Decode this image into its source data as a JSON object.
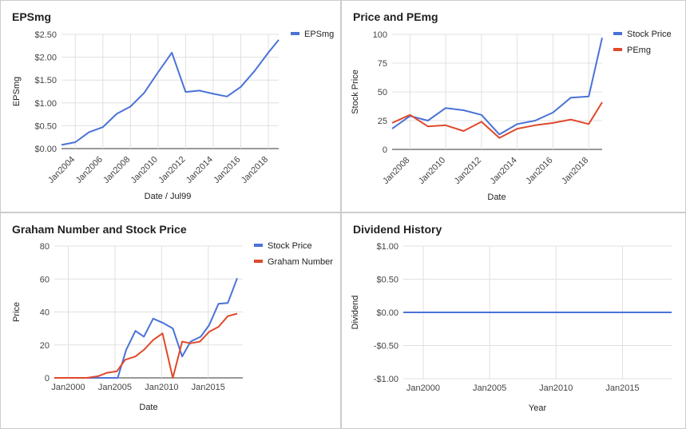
{
  "chart_data": [
    {
      "type": "line",
      "title": "EPSmg",
      "xlabel": "Date / Jul99",
      "ylabel": "EPSmg",
      "x_ticks": [
        "Jan2004",
        "Jan2006",
        "Jan2008",
        "Jan2010",
        "Jan2012",
        "Jan2014",
        "Jan2016",
        "Jan2018"
      ],
      "y_ticks": [
        "$0.00",
        "$0.50",
        "$1.00",
        "$1.50",
        "$2.00",
        "$2.50"
      ],
      "ylim": [
        0,
        2.5
      ],
      "xlim": [
        2003.0,
        2018.75
      ],
      "legend": "right",
      "grid": true,
      "series": [
        {
          "name": "EPSmg",
          "color": "#4a72d6",
          "x": [
            2003.0,
            2004.0,
            2005.0,
            2006.0,
            2007.0,
            2008.0,
            2009.0,
            2010.0,
            2011.0,
            2012.0,
            2013.0,
            2014.0,
            2015.0,
            2016.0,
            2017.0,
            2018.0,
            2018.75
          ],
          "y": [
            0.08,
            0.14,
            0.36,
            0.47,
            0.76,
            0.92,
            1.22,
            1.67,
            2.1,
            1.24,
            1.27,
            1.2,
            1.14,
            1.35,
            1.7,
            2.1,
            2.38
          ]
        }
      ]
    },
    {
      "type": "line",
      "title": "Price and PEmg",
      "xlabel": "Date",
      "ylabel": "Stock Price",
      "x_ticks": [
        "Jan2008",
        "Jan2010",
        "Jan2012",
        "Jan2014",
        "Jan2016",
        "Jan2018"
      ],
      "y_ticks": [
        "0",
        "25",
        "50",
        "75",
        "100"
      ],
      "ylim": [
        0,
        100
      ],
      "xlim": [
        2007.0,
        2018.75
      ],
      "legend": "right",
      "grid": true,
      "series": [
        {
          "name": "Stock Price",
          "color": "#4a72d6",
          "x": [
            2007.0,
            2008.0,
            2009.0,
            2010.0,
            2011.0,
            2012.0,
            2013.0,
            2014.0,
            2015.0,
            2016.0,
            2017.0,
            2018.0,
            2018.75
          ],
          "y": [
            18,
            29,
            25,
            36,
            34,
            30,
            13,
            22,
            25,
            32,
            45,
            46,
            97
          ]
        },
        {
          "name": "PEmg",
          "color": "#e0492c",
          "x": [
            2007.0,
            2008.0,
            2009.0,
            2010.0,
            2011.0,
            2012.0,
            2013.0,
            2014.0,
            2015.0,
            2016.0,
            2017.0,
            2018.0,
            2018.75
          ],
          "y": [
            23,
            30,
            20,
            21,
            16,
            24,
            10,
            18,
            21,
            23,
            26,
            22,
            41
          ]
        }
      ]
    },
    {
      "type": "line",
      "title": "Graham Number and Stock Price",
      "xlabel": "Date",
      "ylabel": "Price",
      "x_ticks": [
        "Jan2000",
        "Jan2005",
        "Jan2010",
        "Jan2015"
      ],
      "x_tick_values": [
        2000,
        2005,
        2010,
        2015
      ],
      "y_ticks": [
        "0",
        "20",
        "40",
        "60",
        "80"
      ],
      "ylim": [
        0,
        80
      ],
      "xlim": [
        1998.5,
        2018.7
      ],
      "legend": "right",
      "grid": true,
      "series": [
        {
          "name": "Stock Price",
          "color": "#4a72d6",
          "x": [
            1998.5,
            2004.5,
            2005.3,
            2006.2,
            2007.2,
            2008.1,
            2009.1,
            2010.1,
            2011.2,
            2012.2,
            2013.1,
            2014.2,
            2015.1,
            2016.1,
            2017.1,
            2018.1
          ],
          "y": [
            0,
            0,
            0,
            17,
            28.5,
            25,
            36,
            33.5,
            30,
            13,
            22,
            25,
            32,
            45,
            45.5,
            60.5
          ]
        },
        {
          "name": "Graham Number",
          "color": "#e0492c",
          "x": [
            1998.5,
            2002.0,
            2003.2,
            2004.1,
            2005.2,
            2006.1,
            2007.2,
            2008.1,
            2009.1,
            2010.1,
            2011.2,
            2012.2,
            2013.1,
            2014.1,
            2015.1,
            2016.1,
            2017.1,
            2018.1
          ],
          "y": [
            0,
            0,
            1,
            3,
            4,
            11,
            13,
            17,
            23,
            27,
            0,
            22,
            21,
            22,
            28,
            31,
            37.5,
            39
          ]
        }
      ]
    },
    {
      "type": "line",
      "title": "Dividend History",
      "xlabel": "Year",
      "ylabel": "Dividend",
      "x_ticks": [
        "Jan2000",
        "Jan2005",
        "Jan2010",
        "Jan2015"
      ],
      "x_tick_values": [
        2000,
        2005,
        2010,
        2015
      ],
      "y_ticks": [
        "-$1.00",
        "-$0.50",
        "$0.00",
        "$0.50",
        "$1.00"
      ],
      "ylim": [
        -1,
        1
      ],
      "xlim": [
        1998.5,
        2018.7
      ],
      "grid": true,
      "series": [
        {
          "color": "#4a72d6",
          "x": [
            1998.5,
            2018.7
          ],
          "y": [
            0,
            0
          ]
        }
      ]
    }
  ]
}
